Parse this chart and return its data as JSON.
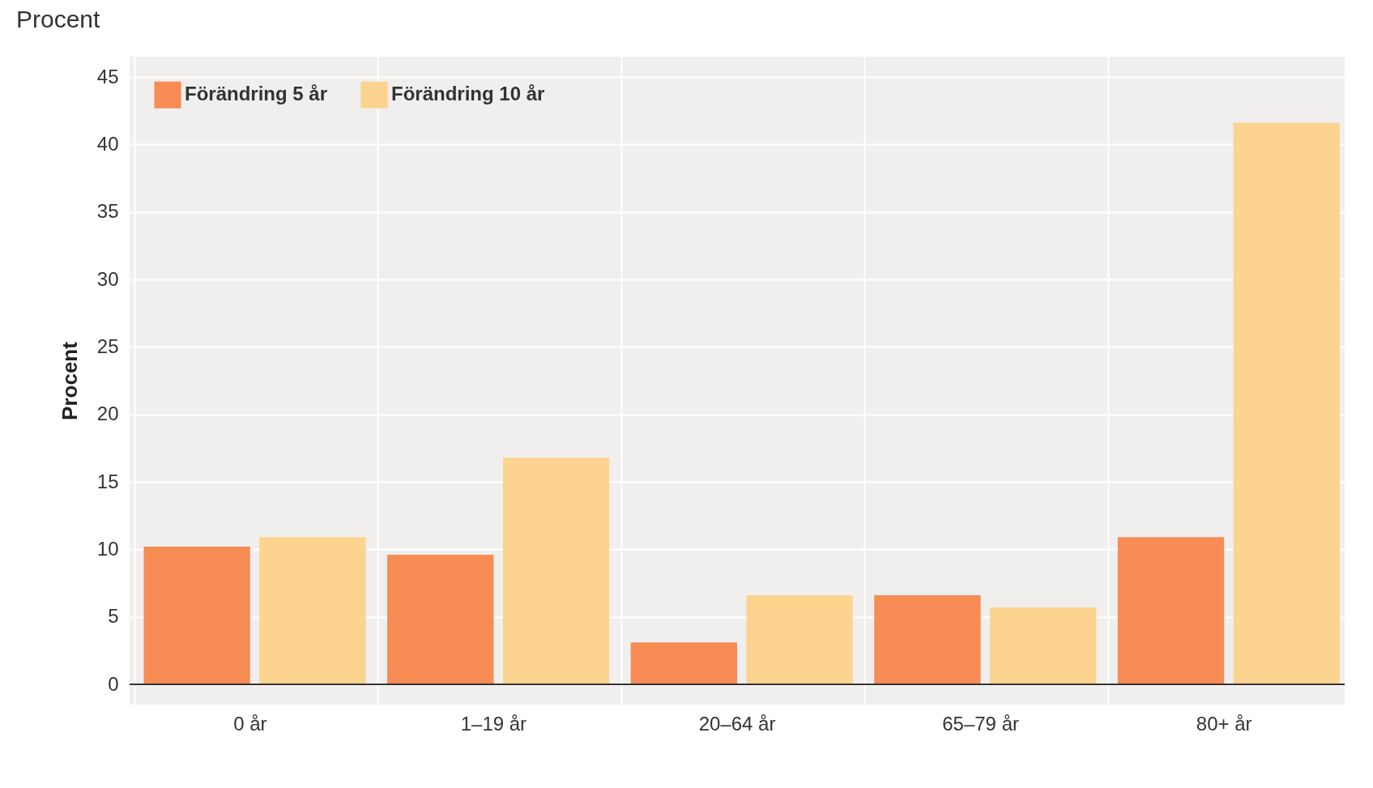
{
  "chart_data": {
    "type": "bar",
    "title": "Procent",
    "ylabel": "Procent",
    "categories": [
      "0 år",
      "1–19 år",
      "20–64 år",
      "65–79 år",
      "80+ år"
    ],
    "series": [
      {
        "name": "Förändring 5 år",
        "color": "#f78c55",
        "values": [
          10.2,
          9.6,
          3.1,
          6.6,
          10.9
        ]
      },
      {
        "name": "Förändring 10 år",
        "color": "#fdd48f",
        "values": [
          10.9,
          16.8,
          6.6,
          5.7,
          41.6
        ]
      }
    ],
    "ylim": [
      -1.5,
      46.5
    ],
    "yticks": [
      0,
      5,
      10,
      15,
      20,
      25,
      30,
      35,
      40,
      45
    ],
    "grid": true,
    "legend": "top left",
    "ref_lines": [
      {
        "axis": "y",
        "value": 0,
        "label": null,
        "color": "#333333"
      }
    ]
  }
}
